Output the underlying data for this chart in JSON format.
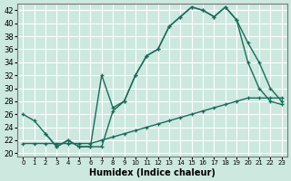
{
  "xlabel": "Humidex (Indice chaleur)",
  "bg_color": "#cce8df",
  "grid_color": "#ffffff",
  "line_color": "#1a6b5a",
  "xlim": [
    -0.5,
    23.5
  ],
  "ylim": [
    19.5,
    43
  ],
  "xticks": [
    0,
    1,
    2,
    3,
    4,
    5,
    6,
    7,
    8,
    9,
    10,
    11,
    12,
    13,
    14,
    15,
    16,
    17,
    18,
    19,
    20,
    21,
    22,
    23
  ],
  "yticks": [
    20,
    22,
    24,
    26,
    28,
    30,
    32,
    34,
    36,
    38,
    40,
    42
  ],
  "line1_x": [
    0,
    1,
    2,
    3,
    4,
    5,
    6,
    7,
    8,
    9,
    10,
    11,
    12,
    13,
    14,
    15,
    16,
    17,
    18,
    19,
    20,
    21,
    22,
    23
  ],
  "line1_y": [
    26,
    25,
    23,
    21,
    22,
    21,
    21,
    21,
    26.5,
    28,
    32,
    35,
    36,
    39.5,
    41,
    42.5,
    42,
    41,
    42.5,
    40.5,
    34,
    30,
    28,
    27.5
  ],
  "line2_x": [
    2,
    3,
    4,
    5,
    6,
    7,
    8,
    9,
    10,
    11,
    12,
    13,
    14,
    15,
    16,
    17,
    18,
    19,
    20,
    21,
    22,
    23
  ],
  "line2_y": [
    23,
    21,
    22,
    21,
    21,
    32,
    27,
    28,
    32,
    35,
    36,
    39.5,
    41,
    42.5,
    42,
    41,
    42.5,
    40.5,
    37,
    34,
    30,
    28
  ],
  "line3_x": [
    0,
    1,
    2,
    3,
    4,
    5,
    6,
    7,
    8,
    9,
    10,
    11,
    12,
    13,
    14,
    15,
    16,
    17,
    18,
    19,
    20,
    21,
    22,
    23
  ],
  "line3_y": [
    21.5,
    21.5,
    21.5,
    21.5,
    21.5,
    21.5,
    21.5,
    22,
    22.5,
    23,
    23.5,
    24,
    24.5,
    25,
    25.5,
    26,
    26.5,
    27,
    27.5,
    28,
    28.5,
    28.5,
    28.5,
    28.5
  ]
}
